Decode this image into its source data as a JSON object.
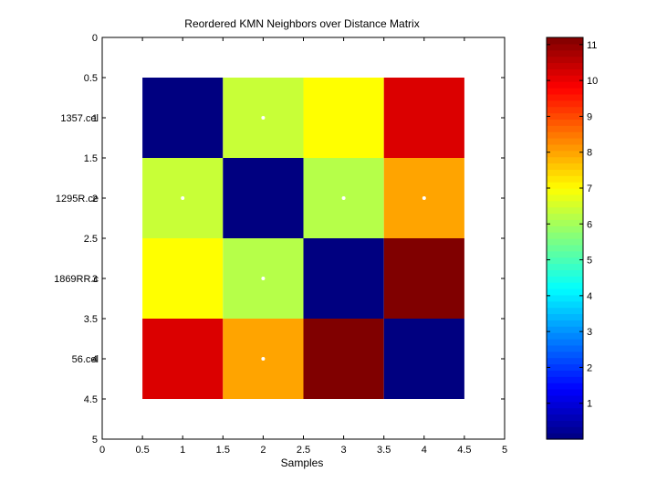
{
  "chart_data": {
    "type": "heatmap",
    "title": "Reordered KMN Neighbors over Distance Matrix",
    "xlabel": "Samples",
    "ylabel": "",
    "xlim": [
      0,
      5
    ],
    "ylim": [
      0,
      5
    ],
    "x_ticks": [
      "0",
      "0.5",
      "1",
      "1.5",
      "2",
      "2.5",
      "3",
      "3.5",
      "4",
      "4.5",
      "5"
    ],
    "y_ticks": [
      "0",
      "0.5",
      "1",
      "1.5",
      "2",
      "2.5",
      "3",
      "3.5",
      "4",
      "4.5",
      "5"
    ],
    "row_labels": [
      "1357.cel",
      "1295R.ce",
      "1869RR.c",
      "56.cel"
    ],
    "row_label_overlay": [
      "1",
      "2",
      "3",
      "4"
    ],
    "matrix": [
      [
        0.0,
        6.4,
        7.0,
        10.2
      ],
      [
        6.4,
        0.0,
        6.2,
        8.0
      ],
      [
        7.0,
        6.2,
        0.0,
        11.2
      ],
      [
        10.2,
        8.0,
        11.2,
        0.0
      ]
    ],
    "neighbor_markers": [
      {
        "row": 1,
        "col": 2
      },
      {
        "row": 2,
        "col": 1
      },
      {
        "row": 2,
        "col": 3
      },
      {
        "row": 2,
        "col": 4
      },
      {
        "row": 3,
        "col": 2
      },
      {
        "row": 4,
        "col": 2
      }
    ],
    "colorbar": {
      "colormap": "jet",
      "range": [
        0,
        11.2
      ],
      "ticks": [
        "1",
        "2",
        "3",
        "4",
        "5",
        "6",
        "7",
        "8",
        "9",
        "10",
        "11"
      ]
    },
    "grid": false
  }
}
